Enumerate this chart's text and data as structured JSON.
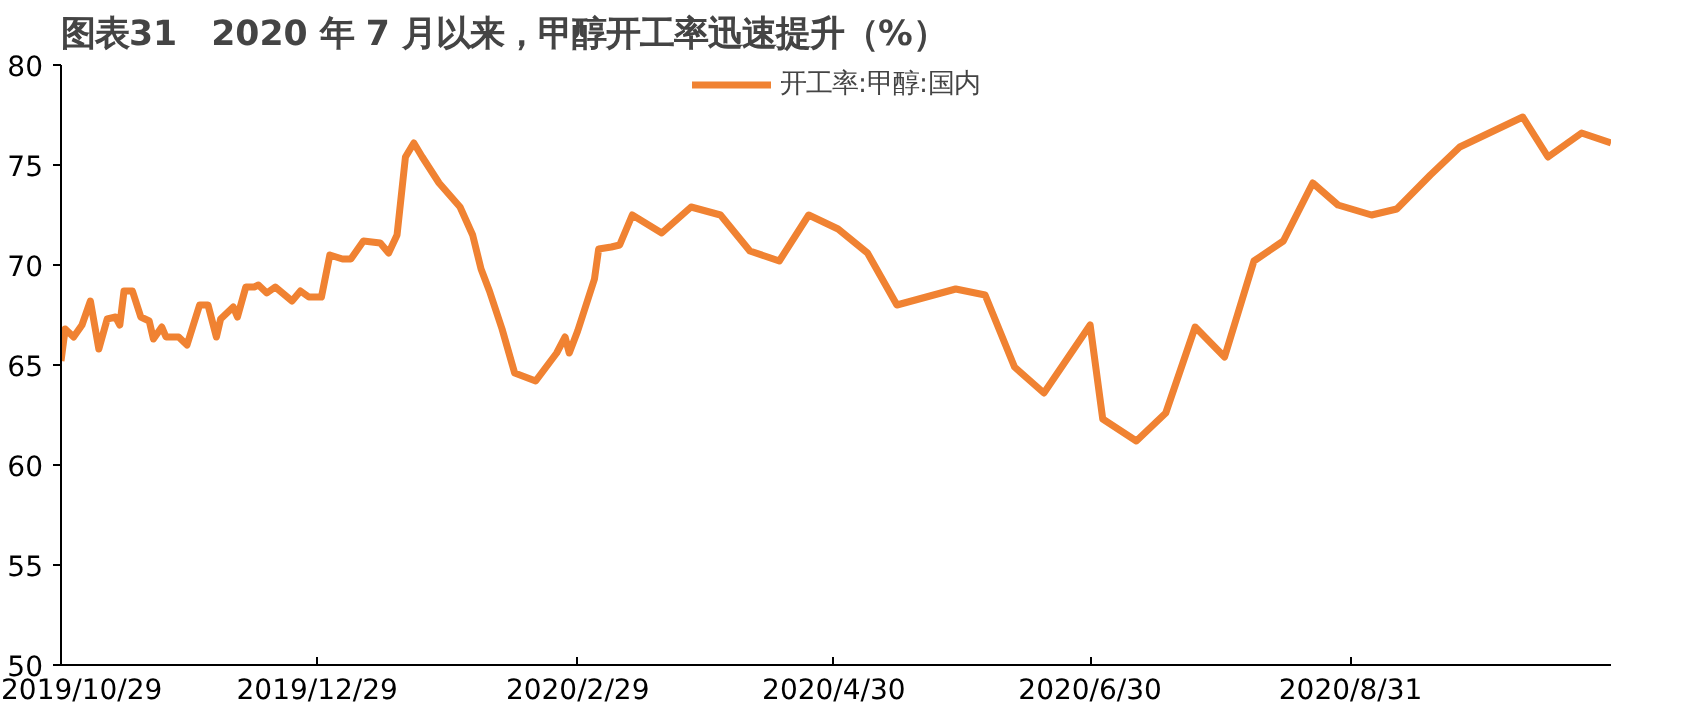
{
  "chart_data": {
    "type": "line",
    "title": "图表31　2020 年 7 月以来，甲醇开工率迅速提升（%）",
    "x": [
      "2019-10-29",
      "2019-10-30",
      "2019-11-01",
      "2019-11-03",
      "2019-11-05",
      "2019-11-07",
      "2019-11-09",
      "2019-11-11",
      "2019-11-12",
      "2019-11-13",
      "2019-11-15",
      "2019-11-17",
      "2019-11-19",
      "2019-11-20",
      "2019-11-22",
      "2019-11-23",
      "2019-11-26",
      "2019-11-28",
      "2019-12-01",
      "2019-12-03",
      "2019-12-05",
      "2019-12-06",
      "2019-12-09",
      "2019-12-10",
      "2019-12-12",
      "2019-12-14",
      "2019-12-15",
      "2019-12-17",
      "2019-12-19",
      "2019-12-23",
      "2019-12-25",
      "2019-12-27",
      "2019-12-30",
      "2020-01-01",
      "2020-01-04",
      "2020-01-06",
      "2020-01-09",
      "2020-01-13",
      "2020-01-15",
      "2020-01-17",
      "2020-01-19",
      "2020-01-21",
      "2020-01-23",
      "2020-01-27",
      "2020-02-01",
      "2020-02-04",
      "2020-02-06",
      "2020-02-08",
      "2020-02-11",
      "2020-02-14",
      "2020-02-19",
      "2020-02-24",
      "2020-02-26",
      "2020-02-27",
      "2020-02-29",
      "2020-03-02",
      "2020-03-04",
      "2020-03-05",
      "2020-03-08",
      "2020-03-10",
      "2020-03-13",
      "2020-03-20",
      "2020-03-27",
      "2020-04-03",
      "2020-04-10",
      "2020-04-17",
      "2020-04-24",
      "2020-05-01",
      "2020-05-08",
      "2020-05-15",
      "2020-05-22",
      "2020-05-29",
      "2020-06-05",
      "2020-06-12",
      "2020-06-19",
      "2020-06-30",
      "2020-07-03",
      "2020-07-11",
      "2020-07-18",
      "2020-07-25",
      "2020-08-01",
      "2020-08-08",
      "2020-08-15",
      "2020-08-22",
      "2020-08-28",
      "2020-09-05",
      "2020-09-11",
      "2020-09-19",
      "2020-09-26",
      "2020-10-11",
      "2020-10-17",
      "2020-10-25",
      "2020-11-01"
    ],
    "series": [
      {
        "name": "开工率:甲醇:国内",
        "color": "#f08232",
        "values": [
          65.2,
          66.8,
          66.4,
          67.0,
          68.2,
          65.8,
          67.3,
          67.4,
          67.0,
          68.7,
          68.7,
          67.4,
          67.2,
          66.3,
          66.9,
          66.4,
          66.4,
          66.0,
          68.0,
          68.0,
          66.4,
          67.3,
          67.9,
          67.4,
          68.9,
          68.9,
          69.0,
          68.6,
          68.9,
          68.2,
          68.7,
          68.4,
          68.4,
          70.5,
          70.3,
          70.3,
          71.2,
          71.1,
          70.6,
          71.5,
          75.4,
          76.1,
          75.4,
          74.1,
          72.9,
          71.5,
          69.8,
          68.7,
          66.8,
          64.6,
          64.2,
          65.6,
          66.4,
          65.6,
          66.7,
          68.0,
          69.3,
          70.8,
          70.9,
          71.0,
          72.5,
          71.6,
          72.9,
          72.5,
          70.7,
          70.2,
          72.5,
          71.8,
          70.6,
          68.0,
          68.4,
          68.8,
          68.5,
          64.9,
          63.6,
          67.0,
          62.3,
          61.2,
          62.6,
          66.9,
          65.4,
          70.2,
          71.2,
          74.1,
          73.0,
          72.5,
          72.8,
          74.5,
          75.9,
          77.4,
          75.4,
          76.6,
          76.1
        ]
      }
    ],
    "xlim": [
      "2019-10-29",
      "2020-11-01"
    ],
    "xticks": [
      {
        "value": "2019-10-29",
        "label": "2019/10/29"
      },
      {
        "value": "2019-12-29",
        "label": "2019/12/29"
      },
      {
        "value": "2020-02-29",
        "label": "2020/2/29"
      },
      {
        "value": "2020-04-30",
        "label": "2020/4/30"
      },
      {
        "value": "2020-06-30",
        "label": "2020/6/30"
      },
      {
        "value": "2020-08-31",
        "label": "2020/8/31"
      }
    ],
    "ylim": [
      50,
      80
    ],
    "yticks": [
      50,
      55,
      60,
      65,
      70,
      75,
      80
    ],
    "legend": "top",
    "grid": false,
    "line_style": "solid",
    "marker": "none"
  }
}
